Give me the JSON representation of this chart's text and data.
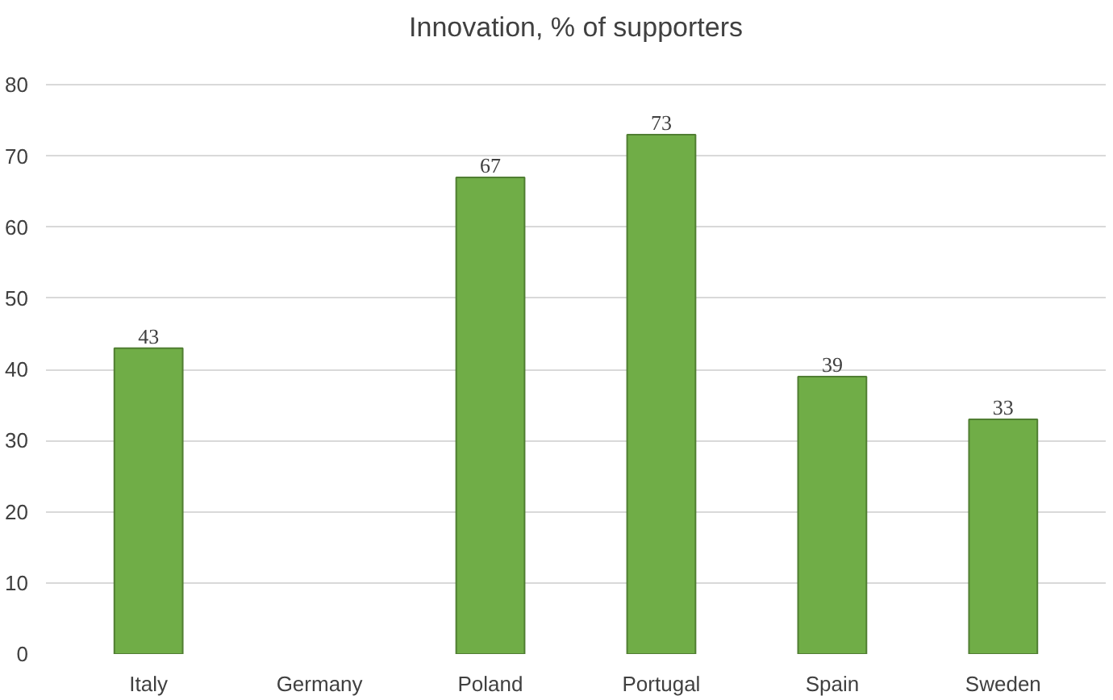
{
  "chart_data": {
    "type": "bar",
    "title": "Innovation, % of supporters",
    "categories": [
      "Italy",
      "Germany",
      "Poland",
      "Portugal",
      "Spain",
      "Sweden"
    ],
    "values": [
      43,
      null,
      67,
      73,
      39,
      33
    ],
    "color": "#70ad47",
    "ylim": [
      0,
      80
    ],
    "yticks": [
      0,
      10,
      20,
      30,
      40,
      50,
      60,
      70,
      80
    ],
    "grid": "y",
    "data_labels": true
  }
}
